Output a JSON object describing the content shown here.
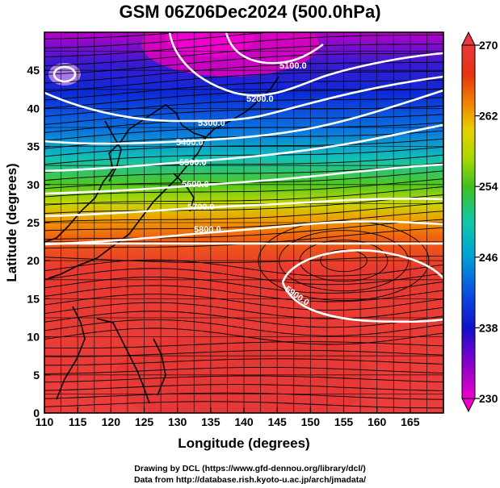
{
  "title": "GSM 06Z06Dec2024 (500.0hPa)",
  "x_axis": {
    "label": "Longitude (degrees)",
    "ticks": [
      "110",
      "115",
      "120",
      "125",
      "130",
      "135",
      "140",
      "145",
      "150",
      "155",
      "160",
      "165"
    ],
    "range": [
      110,
      170
    ]
  },
  "y_axis": {
    "label": "Latitude  (degrees)",
    "ticks": [
      "0",
      "5",
      "10",
      "15",
      "20",
      "25",
      "30",
      "35",
      "40",
      "45"
    ],
    "range": [
      0,
      50
    ]
  },
  "colorbar": {
    "ticks": [
      "230",
      "238",
      "246",
      "254",
      "262",
      "270"
    ],
    "range": [
      230,
      270
    ],
    "colors": [
      "#ee00cc",
      "#8800cc",
      "#1010cc",
      "#0a50e0",
      "#00a0d8",
      "#10c8a8",
      "#40c020",
      "#a8d800",
      "#e8d000",
      "#f08000",
      "#e83010",
      "#e83a3a"
    ]
  },
  "contours": [
    {
      "value": "5100.0"
    },
    {
      "value": "5200.0"
    },
    {
      "value": "5300.0"
    },
    {
      "value": "5400.0"
    },
    {
      "value": "5500.0"
    },
    {
      "value": "5600.0"
    },
    {
      "value": "5700.0"
    },
    {
      "value": "5800.0"
    },
    {
      "value": "5900.0"
    }
  ],
  "credits": [
    "Drawing by DCL (https://www.gfd-dennou.org/library/dcl/)",
    "Data from http://database.rish.kyoto-u.ac.jp/arch/jmadata/"
  ]
}
